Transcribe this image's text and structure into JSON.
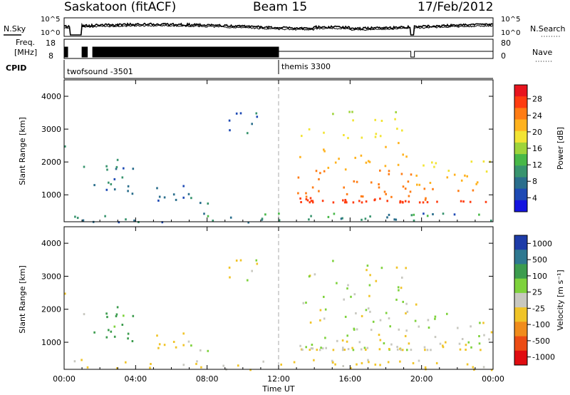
{
  "header": {
    "site": "Saskatoon (fitACF)",
    "beam": "Beam 15",
    "date": "17/Feb/2012"
  },
  "strip": {
    "nsky_label": "N.Sky",
    "nsky_ticks": [
      "10^5",
      "10^0"
    ],
    "nsearch_ticks": [
      "10^5",
      "10^0"
    ],
    "nsearch_label": "N.Search",
    "freq_label_1": "Freq.",
    "freq_label_2": "[MHz]",
    "freq_ticks": [
      "18",
      "8"
    ],
    "nave_ticks": [
      "80",
      "0"
    ],
    "nave_label": "Nave",
    "cpid_label": "CPID",
    "cpid_1": "twofsound -3501",
    "cpid_2": "themis 3300"
  },
  "axes": {
    "ylabel": "Slant Range [km]",
    "xlabel": "Time UT",
    "yticks": [
      "4000",
      "3000",
      "2000",
      "1000"
    ],
    "xticks": [
      "00:00",
      "04:00",
      "08:00",
      "12:00",
      "16:00",
      "20:00",
      "00:00"
    ]
  },
  "power_scale": {
    "label": "Power [dB]",
    "ticks": [
      "28",
      "24",
      "20",
      "16",
      "12",
      "8",
      "4"
    ],
    "colors": [
      "#e8141e",
      "#ff3c10",
      "#ff7c14",
      "#ffb21e",
      "#f2e434",
      "#9ed43a",
      "#48b848",
      "#38946e",
      "#2a6e8c",
      "#1e4ab4",
      "#1414e0"
    ]
  },
  "velocity_scale": {
    "label": "Velocity [m s⁻¹]",
    "ticks": [
      "1000",
      "500",
      "100",
      "25",
      "-25",
      "-100",
      "-500",
      "-1000"
    ],
    "colors": [
      "#1e3ca8",
      "#2e7890",
      "#3c9c4e",
      "#7ed23c",
      "#c8c8c0",
      "#f0c428",
      "#f08c1c",
      "#ec4c14",
      "#e00c10"
    ]
  },
  "chart_data": {
    "type": "heatmap",
    "x_range_hours": [
      0,
      24
    ],
    "y_range_km": [
      180,
      4500
    ],
    "panels": [
      {
        "name": "Power",
        "unit": "dB",
        "range": [
          0,
          30
        ]
      },
      {
        "name": "Velocity",
        "unit": "m s-1",
        "range": [
          -1000,
          1000
        ]
      }
    ],
    "cpid_change_hour": 12,
    "data_gap_hours": [
      19.4,
      19.6
    ],
    "scatter_regions": [
      {
        "t": [
          0.0,
          0.2
        ],
        "r": [
          1400,
          2600
        ],
        "power": 10,
        "velocity": 0
      },
      {
        "t": [
          1.0,
          1.3
        ],
        "r": [
          1300,
          2100
        ],
        "power": 8,
        "velocity": 0
      },
      {
        "t": [
          1.5,
          4.0
        ],
        "r": [
          1000,
          2200
        ],
        "power": 6,
        "velocity": 250
      },
      {
        "t": [
          4.8,
          6.3
        ],
        "r": [
          600,
          1300
        ],
        "power": 5,
        "velocity": -50
      },
      {
        "t": [
          6.5,
          8.2
        ],
        "r": [
          700,
          1300
        ],
        "power": 6,
        "velocity": 0
      },
      {
        "t": [
          9.2,
          10.9
        ],
        "r": [
          2800,
          3600
        ],
        "power": 5,
        "velocity": 0
      },
      {
        "t": [
          13.0,
          19.4
        ],
        "r": [
          800,
          3600
        ],
        "power": 22,
        "velocity": 0
      },
      {
        "t": [
          19.6,
          24.0
        ],
        "r": [
          800,
          2200
        ],
        "power": 22,
        "velocity": 0
      },
      {
        "t": [
          0.0,
          24.0
        ],
        "r": [
          180,
          500
        ],
        "power": 8,
        "velocity": -40
      }
    ]
  }
}
